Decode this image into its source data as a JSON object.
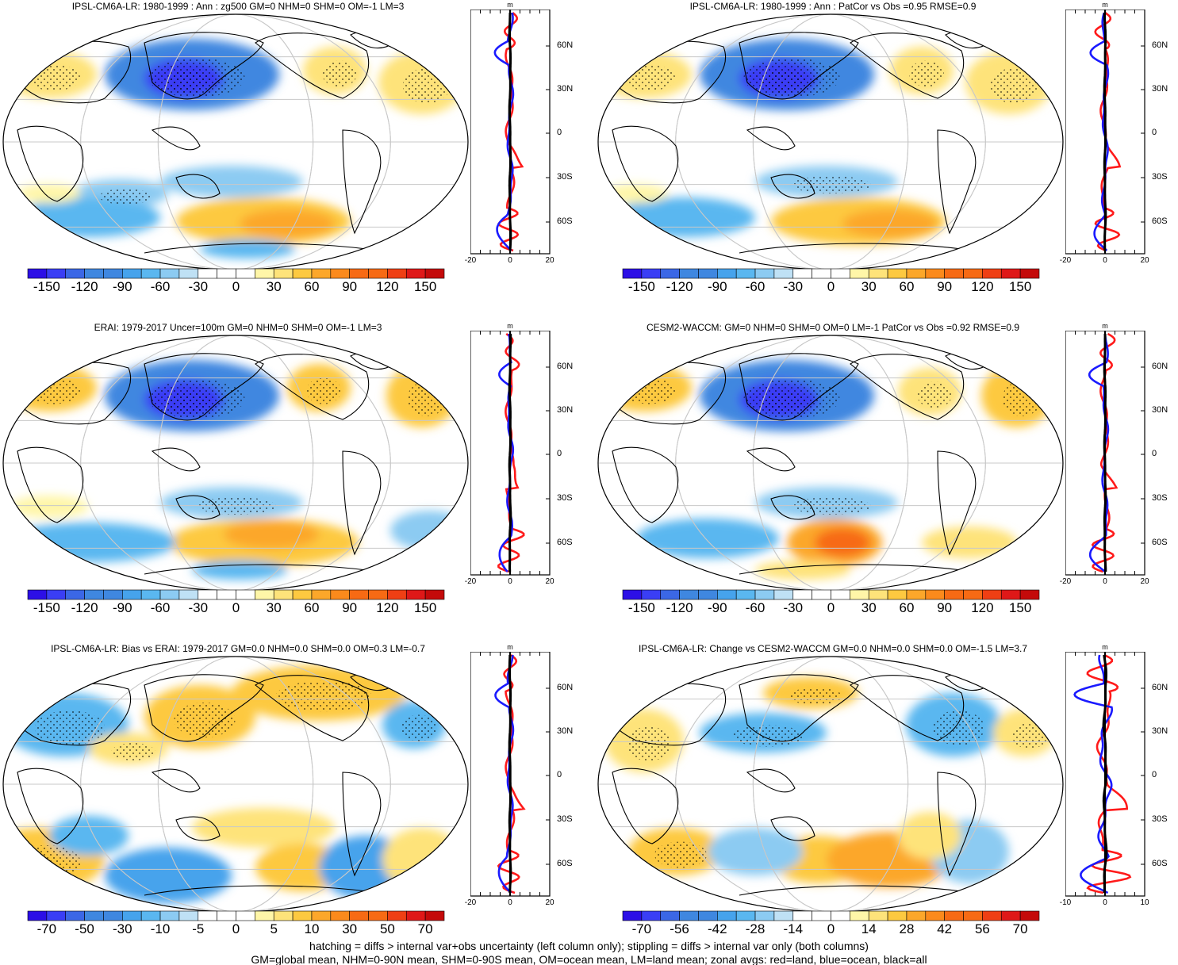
{
  "panels": [
    {
      "title": "IPSL-CM6A-LR: 1980-1999 : Ann : zg500 GM=0 NHM=0 SHM=0 OM=-1 LM=3",
      "colorbar": [
        "-150",
        "-120",
        "-90",
        "-60",
        "-30",
        "0",
        "30",
        "60",
        "90",
        "120",
        "150"
      ],
      "zonal_x": [
        "-20",
        "0",
        "20"
      ]
    },
    {
      "title": "IPSL-CM6A-LR: 1980-1999 : Ann : PatCor vs Obs =0.95 RMSE=0.9",
      "colorbar": [
        "-150",
        "-120",
        "-90",
        "-60",
        "-30",
        "0",
        "30",
        "60",
        "90",
        "120",
        "150"
      ],
      "zonal_x": [
        "-20",
        "0",
        "20"
      ]
    },
    {
      "title": "ERAI: 1979-2017 Uncer=100m GM=0 NHM=0 SHM=0 OM=-1 LM=3",
      "colorbar": [
        "-150",
        "-120",
        "-90",
        "-60",
        "-30",
        "0",
        "30",
        "60",
        "90",
        "120",
        "150"
      ],
      "zonal_x": [
        "-20",
        "0",
        "20"
      ]
    },
    {
      "title": "CESM2-WACCM: GM=0 NHM=0 SHM=0 OM=0 LM=-1 PatCor vs Obs =0.92 RMSE=0.9",
      "colorbar": [
        "-150",
        "-120",
        "-90",
        "-60",
        "-30",
        "0",
        "30",
        "60",
        "90",
        "120",
        "150"
      ],
      "zonal_x": [
        "-20",
        "0",
        "20"
      ]
    },
    {
      "title": "IPSL-CM6A-LR: Bias vs ERAI: 1979-2017 GM=0.0 NHM=0.0 SHM=0.0 OM=0.3 LM=-0.7",
      "colorbar": [
        "-70",
        "-50",
        "-30",
        "-10",
        "-5",
        "0",
        "5",
        "10",
        "30",
        "50",
        "70"
      ],
      "zonal_x": [
        "-20",
        "0",
        "20"
      ]
    },
    {
      "title": "IPSL-CM6A-LR: Change vs CESM2-WACCM GM=0.0 NHM=0.0 SHM=0.0 OM=-1.5 LM=3.7",
      "colorbar": [
        "-70",
        "-56",
        "-42",
        "-28",
        "-14",
        "0",
        "14",
        "28",
        "42",
        "56",
        "70"
      ],
      "zonal_x": [
        "-10",
        "0",
        "10"
      ]
    }
  ],
  "latitude_labels": [
    "60N",
    "30N",
    "0",
    "30S",
    "60S"
  ],
  "zonal_unit": "m",
  "colors": {
    "land": "#ff1a1a",
    "ocean": "#1a1aff",
    "all": "#000000"
  },
  "palette": [
    "#2c0fe6",
    "#3a3ef5",
    "#3b67e6",
    "#3f87e0",
    "#46a3ec",
    "#5ab7f0",
    "#8ccbf2",
    "#bfe1f5",
    "#ffffff",
    "#ffffff",
    "#fff6a8",
    "#fee37a",
    "#fdc940",
    "#fca72a",
    "#fb8a1c",
    "#f76a14",
    "#ef3f14",
    "#df1818",
    "#c40a0a"
  ],
  "footer": {
    "line1": "hatching = diffs > internal var+obs uncertainty (left column only); stippling = diffs > internal var only (both columns)",
    "line2": "GM=global mean, NHM=0-90N mean, SHM=0-90S mean, OM=ocean mean, LM=land mean; zonal avgs: red=land, blue=ocean, black=all"
  }
}
